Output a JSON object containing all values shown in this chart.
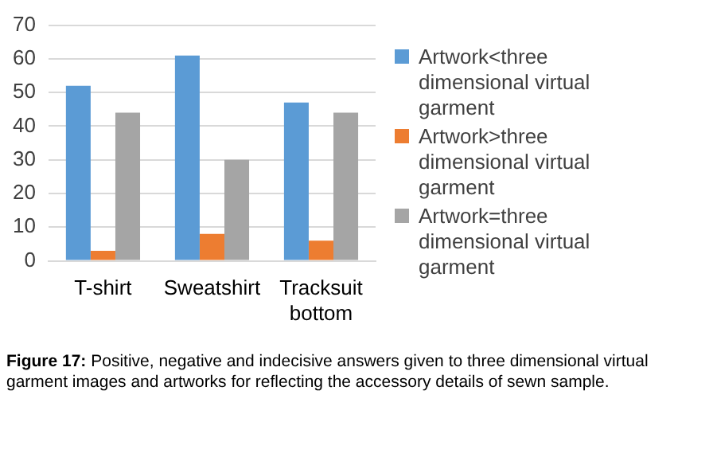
{
  "chart_data": {
    "type": "bar",
    "categories": [
      "T-shirt",
      "Sweatshirt",
      "Tracksuit bottom"
    ],
    "series": [
      {
        "name": "Artwork<three dimensional virtual garment",
        "color": "#5b9bd5",
        "values": [
          52,
          61,
          47
        ]
      },
      {
        "name": "Artwork>three dimensional virtual garment",
        "color": "#ed7d31",
        "values": [
          3,
          8,
          6
        ]
      },
      {
        "name": "Artwork=three dimensional virtual garment",
        "color": "#a5a5a5",
        "values": [
          44,
          30,
          44
        ]
      }
    ],
    "ylim": [
      0,
      70
    ],
    "yticks": [
      0,
      10,
      20,
      30,
      40,
      50,
      60,
      70
    ],
    "grid": "y",
    "legend": "right",
    "annotations": [
      "Figure 17: Positive, negative and indecisive answers given to three dimensional virtual garment images and artworks for reflecting the accessory details of sewn sample."
    ]
  }
}
